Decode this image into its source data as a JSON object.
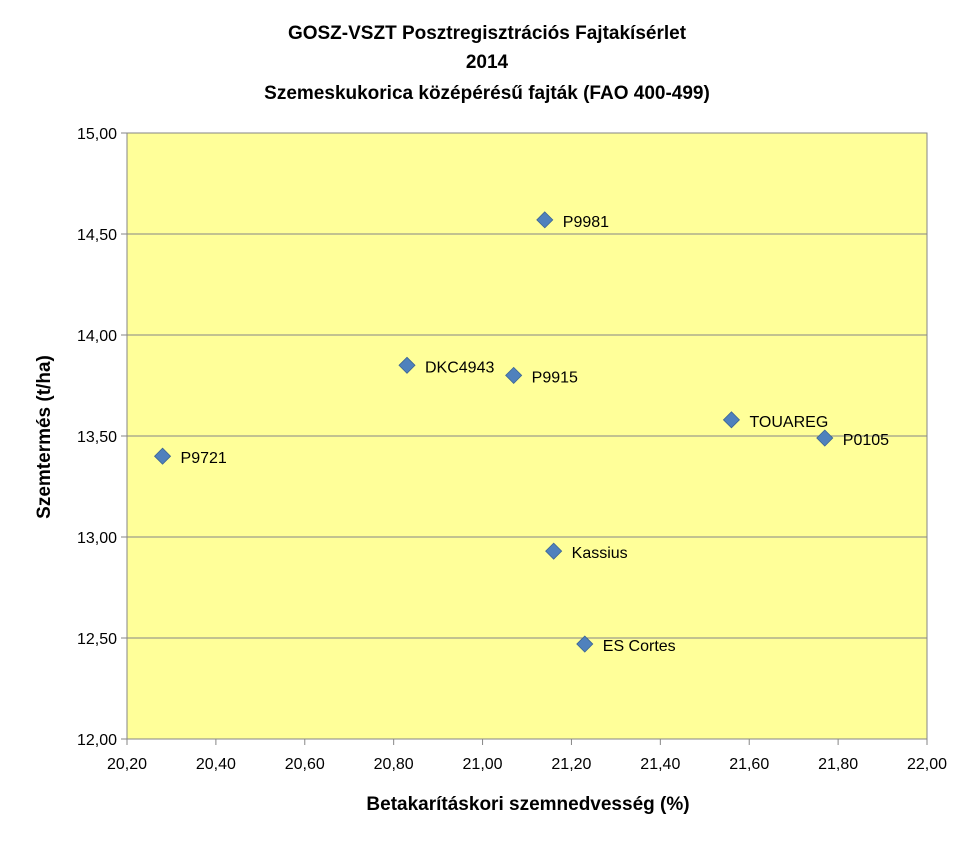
{
  "chart_data": {
    "type": "scatter",
    "title_lines": [
      "GOSZ-VSZT Posztregisztrációs Fajtakísérlet",
      "2014",
      "Szemeskukorica középérésű fajták (FAO 400-499)"
    ],
    "xlabel": "Betakarításkori szemnedvesség (%)",
    "ylabel": "Szemtermés (t/ha)",
    "xlim": [
      20.2,
      22.0
    ],
    "ylim": [
      12.0,
      15.0
    ],
    "x_ticks": [
      "20,20",
      "20,40",
      "20,60",
      "20,80",
      "21,00",
      "21,20",
      "21,40",
      "21,60",
      "21,80",
      "22,00"
    ],
    "y_ticks": [
      "12,00",
      "12,50",
      "13,00",
      "13,50",
      "14,00",
      "14,50",
      "15,00"
    ],
    "grid": "horizontal",
    "plot_background": "#ffff99",
    "marker_color": "#4f81bd",
    "points": [
      {
        "label": "P9981",
        "x": 21.14,
        "y": 14.57
      },
      {
        "label": "DKC4943",
        "x": 20.83,
        "y": 13.85
      },
      {
        "label": "P9915",
        "x": 21.07,
        "y": 13.8
      },
      {
        "label": "TOUAREG",
        "x": 21.56,
        "y": 13.58
      },
      {
        "label": "P0105",
        "x": 21.77,
        "y": 13.49
      },
      {
        "label": "P9721",
        "x": 20.28,
        "y": 13.4
      },
      {
        "label": "Kassius",
        "x": 21.16,
        "y": 12.93
      },
      {
        "label": "ES Cortes",
        "x": 21.23,
        "y": 12.47
      }
    ]
  }
}
